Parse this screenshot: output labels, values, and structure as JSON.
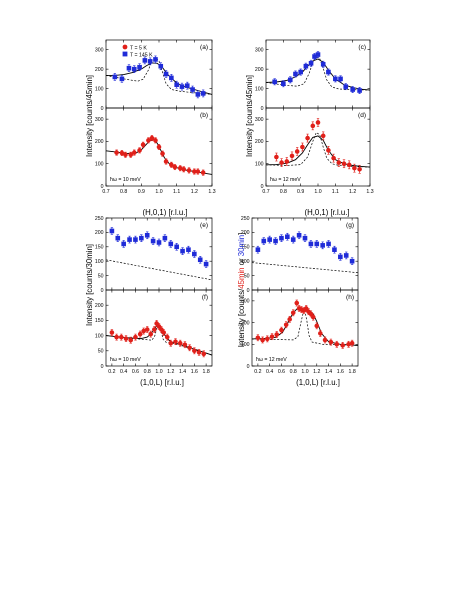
{
  "styles": {
    "blue": "#1f2bd8",
    "red": "#e0201a",
    "black": "#000000"
  },
  "group_labels": {
    "top_left_ylabel": "Intensity [counts/45min]",
    "top_right_ylabel": "Intensity [counts/45min]",
    "top_xlabel": "(H,0,1) [r.l.u.]",
    "bottom_left_ylabel": "Intensity [counts/30min]",
    "bottom_right_ylabel_prefix": "Intensity [counts/",
    "bottom_right_ylabel_red": "45min",
    "bottom_right_ylabel_mid": " or ",
    "bottom_right_ylabel_blue": "30min",
    "bottom_right_ylabel_suffix": "]",
    "bottom_xlabel": "(1,0,L) [r.l.u.]"
  },
  "legend": [
    {
      "label": "T = 5 K",
      "color": "red"
    },
    {
      "label": "T = 145 K",
      "color": "blue"
    }
  ],
  "chart_data": [
    {
      "panel": "(a)",
      "type": "scatter",
      "xlim": [
        0.7,
        1.3
      ],
      "ylim": [
        0,
        350
      ],
      "yticks": [
        0,
        100,
        200,
        300
      ],
      "xticks": [],
      "grid": false,
      "series": [
        {
          "name": "T = 145 K",
          "color": "blue",
          "kind": "points",
          "x": [
            0.75,
            0.79,
            0.83,
            0.86,
            0.89,
            0.92,
            0.95,
            0.98,
            1.01,
            1.04,
            1.07,
            1.1,
            1.13,
            1.16,
            1.19,
            1.22,
            1.25
          ],
          "y": [
            160,
            150,
            205,
            200,
            210,
            245,
            240,
            250,
            215,
            175,
            155,
            120,
            110,
            115,
            95,
            70,
            75
          ],
          "err": 18
        },
        {
          "kind": "fit",
          "style": "solid",
          "x": [
            0.7,
            0.75,
            0.8,
            0.85,
            0.9,
            0.93,
            0.96,
            0.99,
            1.02,
            1.05,
            1.1,
            1.15,
            1.2,
            1.25,
            1.3
          ],
          "y": [
            168,
            168,
            172,
            182,
            200,
            218,
            232,
            230,
            208,
            172,
            128,
            108,
            95,
            82,
            70
          ]
        },
        {
          "kind": "fit",
          "style": "dashed",
          "x": [
            0.7,
            0.8,
            0.88,
            0.91,
            0.94,
            0.96,
            0.98,
            1.0,
            1.02,
            1.04,
            1.07,
            1.12,
            1.2,
            1.3
          ],
          "y": [
            168,
            150,
            138,
            148,
            195,
            245,
            260,
            242,
            185,
            125,
            95,
            86,
            78,
            70
          ]
        }
      ]
    },
    {
      "panel": "(b)",
      "type": "scatter",
      "xlim": [
        0.7,
        1.3
      ],
      "ylim": [
        0,
        350
      ],
      "yticks": [
        0,
        100,
        200,
        300
      ],
      "xticks": [
        0.7,
        0.8,
        0.9,
        1.0,
        1.1,
        1.2,
        1.3
      ],
      "grid": false,
      "annotation": "ħω = 10 meV",
      "series": [
        {
          "name": "T = 5 K",
          "color": "red",
          "kind": "points",
          "x": [
            0.76,
            0.79,
            0.81,
            0.84,
            0.86,
            0.89,
            0.91,
            0.94,
            0.96,
            0.98,
            1.0,
            1.02,
            1.04,
            1.07,
            1.09,
            1.12,
            1.14,
            1.17,
            1.2,
            1.22,
            1.25
          ],
          "y": [
            150,
            148,
            140,
            140,
            150,
            160,
            185,
            205,
            215,
            205,
            175,
            145,
            110,
            95,
            85,
            80,
            75,
            70,
            65,
            65,
            60
          ],
          "err": 12
        },
        {
          "kind": "fit",
          "style": "solid",
          "x": [
            0.7,
            0.76,
            0.82,
            0.87,
            0.9,
            0.93,
            0.95,
            0.97,
            0.99,
            1.01,
            1.03,
            1.06,
            1.1,
            1.15,
            1.22,
            1.3
          ],
          "y": [
            158,
            152,
            146,
            148,
            162,
            188,
            205,
            208,
            192,
            160,
            128,
            98,
            82,
            72,
            62,
            52
          ]
        }
      ]
    },
    {
      "panel": "(c)",
      "type": "scatter",
      "xlim": [
        0.7,
        1.3
      ],
      "ylim": [
        0,
        350
      ],
      "yticks": [
        0,
        100,
        200,
        300
      ],
      "xticks": [],
      "grid": false,
      "series": [
        {
          "name": "T = 145 K",
          "color": "blue",
          "kind": "points",
          "x": [
            0.75,
            0.8,
            0.84,
            0.87,
            0.9,
            0.93,
            0.96,
            0.98,
            1.0,
            1.03,
            1.06,
            1.1,
            1.13,
            1.16,
            1.2,
            1.24
          ],
          "y": [
            135,
            125,
            145,
            175,
            185,
            215,
            230,
            265,
            275,
            225,
            185,
            150,
            150,
            110,
            95,
            90
          ],
          "err": 16
        },
        {
          "kind": "fit",
          "style": "solid",
          "x": [
            0.7,
            0.76,
            0.82,
            0.87,
            0.91,
            0.94,
            0.97,
            1.0,
            1.03,
            1.06,
            1.1,
            1.15,
            1.2,
            1.25,
            1.3
          ],
          "y": [
            132,
            134,
            142,
            160,
            185,
            215,
            242,
            252,
            235,
            195,
            150,
            120,
            105,
            97,
            92
          ]
        },
        {
          "kind": "fit",
          "style": "dashed",
          "x": [
            0.7,
            0.8,
            0.88,
            0.92,
            0.95,
            0.97,
            0.99,
            1.01,
            1.03,
            1.05,
            1.08,
            1.12,
            1.2,
            1.3
          ],
          "y": [
            132,
            118,
            112,
            125,
            180,
            235,
            262,
            255,
            205,
            145,
            108,
            98,
            94,
            92
          ]
        }
      ]
    },
    {
      "panel": "(d)",
      "type": "scatter",
      "xlim": [
        0.7,
        1.3
      ],
      "ylim": [
        0,
        350
      ],
      "yticks": [
        0,
        100,
        200,
        300
      ],
      "xticks": [
        0.7,
        0.8,
        0.9,
        1.0,
        1.1,
        1.2,
        1.3
      ],
      "grid": false,
      "annotation": "ħω = 12 meV",
      "series": [
        {
          "name": "T = 5 K",
          "color": "red",
          "kind": "points",
          "x": [
            0.76,
            0.79,
            0.82,
            0.85,
            0.88,
            0.91,
            0.94,
            0.97,
            1.0,
            1.03,
            1.06,
            1.09,
            1.12,
            1.15,
            1.18,
            1.21,
            1.24
          ],
          "y": [
            130,
            105,
            110,
            135,
            155,
            175,
            215,
            270,
            285,
            225,
            160,
            125,
            105,
            100,
            95,
            80,
            75
          ],
          "err": 18
        },
        {
          "kind": "fit",
          "style": "solid",
          "x": [
            0.7,
            0.76,
            0.82,
            0.87,
            0.91,
            0.94,
            0.97,
            1.0,
            1.03,
            1.06,
            1.1,
            1.15,
            1.2,
            1.25,
            1.3
          ],
          "y": [
            95,
            96,
            102,
            118,
            148,
            185,
            218,
            225,
            205,
            160,
            118,
            100,
            92,
            88,
            85
          ]
        },
        {
          "kind": "fit",
          "style": "dashed",
          "x": [
            0.7,
            0.82,
            0.9,
            0.94,
            0.97,
            0.99,
            1.01,
            1.03,
            1.05,
            1.08,
            1.12,
            1.2,
            1.3
          ],
          "y": [
            95,
            92,
            96,
            130,
            200,
            240,
            230,
            175,
            125,
            100,
            92,
            88,
            85
          ]
        }
      ]
    },
    {
      "panel": "(e)",
      "type": "scatter",
      "xlim": [
        0.1,
        1.9
      ],
      "ylim": [
        0,
        250
      ],
      "yticks": [
        0,
        50,
        100,
        150,
        200,
        250
      ],
      "xticks": [],
      "grid": false,
      "series": [
        {
          "name": "T = 145 K",
          "color": "blue",
          "kind": "points",
          "x": [
            0.2,
            0.3,
            0.4,
            0.5,
            0.6,
            0.7,
            0.8,
            0.9,
            1.0,
            1.1,
            1.2,
            1.3,
            1.4,
            1.5,
            1.6,
            1.7,
            1.8
          ],
          "y": [
            205,
            180,
            160,
            175,
            175,
            180,
            190,
            170,
            165,
            180,
            160,
            150,
            135,
            140,
            125,
            105,
            90
          ],
          "err": 12
        },
        {
          "kind": "fit",
          "style": "dashed",
          "x": [
            0.1,
            1.9
          ],
          "y": [
            105,
            35
          ]
        }
      ]
    },
    {
      "panel": "(f)",
      "type": "scatter",
      "xlim": [
        0.1,
        1.9
      ],
      "ylim": [
        0,
        250
      ],
      "yticks": [
        0,
        50,
        100,
        150,
        200
      ],
      "xticks": [
        0.2,
        0.4,
        0.6,
        0.8,
        1.0,
        1.2,
        1.4,
        1.6,
        1.8
      ],
      "grid": false,
      "annotation": "ħω = 10 meV",
      "series": [
        {
          "name": "T = 5 K",
          "color": "red",
          "kind": "points",
          "x": [
            0.2,
            0.28,
            0.36,
            0.44,
            0.52,
            0.6,
            0.68,
            0.74,
            0.8,
            0.86,
            0.92,
            0.96,
            1.0,
            1.04,
            1.08,
            1.14,
            1.2,
            1.28,
            1.36,
            1.44,
            1.52,
            1.6,
            1.68,
            1.76
          ],
          "y": [
            110,
            95,
            95,
            90,
            85,
            95,
            105,
            115,
            120,
            105,
            120,
            140,
            130,
            120,
            110,
            95,
            75,
            80,
            75,
            70,
            60,
            50,
            45,
            40
          ],
          "err": 10
        },
        {
          "kind": "fit",
          "style": "solid",
          "x": [
            0.1,
            0.3,
            0.5,
            0.7,
            0.8,
            0.86,
            0.92,
            0.96,
            1.0,
            1.04,
            1.08,
            1.14,
            1.2,
            1.4,
            1.6,
            1.9
          ],
          "y": [
            100,
            96,
            92,
            90,
            95,
            105,
            122,
            132,
            134,
            125,
            108,
            90,
            80,
            68,
            56,
            36
          ]
        },
        {
          "kind": "fit",
          "style": "dashed",
          "x": [
            0.1,
            0.7,
            0.88,
            0.93,
            0.97,
            1.0,
            1.03,
            1.07,
            1.12,
            1.3,
            1.9
          ],
          "y": [
            100,
            88,
            85,
            100,
            130,
            138,
            118,
            88,
            78,
            72,
            36
          ]
        }
      ]
    },
    {
      "panel": "(g)",
      "type": "scatter",
      "xlim": [
        0.1,
        1.9
      ],
      "ylim": [
        0,
        250
      ],
      "yticks": [
        0,
        50,
        100,
        150,
        200,
        250
      ],
      "xticks": [],
      "grid": false,
      "series": [
        {
          "name": "T = 145 K",
          "color": "blue",
          "kind": "points",
          "x": [
            0.2,
            0.3,
            0.4,
            0.5,
            0.6,
            0.7,
            0.8,
            0.9,
            1.0,
            1.1,
            1.2,
            1.3,
            1.4,
            1.5,
            1.6,
            1.7,
            1.8
          ],
          "y": [
            140,
            170,
            175,
            170,
            180,
            185,
            175,
            190,
            180,
            160,
            160,
            155,
            160,
            140,
            115,
            120,
            100
          ],
          "err": 12
        },
        {
          "kind": "fit",
          "style": "dashed",
          "x": [
            0.1,
            1.9
          ],
          "y": [
            95,
            60
          ]
        }
      ]
    },
    {
      "panel": "(h)",
      "type": "scatter",
      "xlim": [
        0.1,
        1.9
      ],
      "ylim": [
        0,
        350
      ],
      "yticks": [
        0,
        100,
        200,
        300
      ],
      "xticks": [
        0.2,
        0.4,
        0.6,
        0.8,
        1.0,
        1.2,
        1.4,
        1.6,
        1.8
      ],
      "grid": false,
      "annotation": "ħω = 12 meV",
      "series": [
        {
          "name": "T = 5 K",
          "color": "red",
          "kind": "points",
          "x": [
            0.2,
            0.28,
            0.36,
            0.44,
            0.52,
            0.6,
            0.68,
            0.74,
            0.8,
            0.86,
            0.9,
            0.94,
            0.98,
            1.02,
            1.06,
            1.1,
            1.14,
            1.2,
            1.26,
            1.34,
            1.44,
            1.54,
            1.64,
            1.74,
            1.8
          ],
          "y": [
            130,
            120,
            125,
            135,
            145,
            165,
            190,
            215,
            245,
            290,
            265,
            260,
            255,
            265,
            250,
            240,
            225,
            185,
            150,
            120,
            110,
            100,
            95,
            100,
            105
          ],
          "err": 14
        },
        {
          "kind": "fit",
          "style": "solid",
          "x": [
            0.1,
            0.3,
            0.5,
            0.62,
            0.72,
            0.8,
            0.86,
            0.92,
            1.0,
            1.08,
            1.14,
            1.2,
            1.28,
            1.4,
            1.6,
            1.9
          ],
          "y": [
            125,
            126,
            132,
            155,
            205,
            245,
            262,
            265,
            262,
            255,
            240,
            205,
            150,
            112,
            100,
            95
          ]
        },
        {
          "kind": "fit",
          "style": "dashed",
          "x": [
            0.1,
            0.8,
            0.88,
            0.93,
            0.97,
            1.0,
            1.03,
            1.07,
            1.12,
            1.3,
            1.9
          ],
          "y": [
            125,
            120,
            135,
            200,
            245,
            250,
            210,
            140,
            110,
            100,
            95
          ]
        }
      ]
    }
  ]
}
